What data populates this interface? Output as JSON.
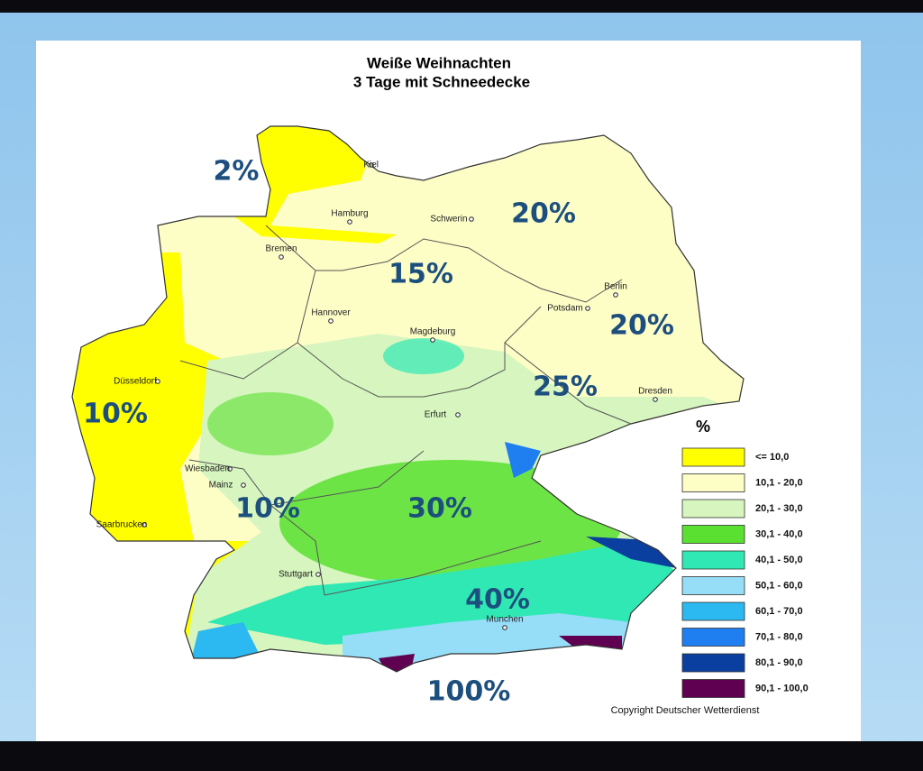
{
  "title": [
    "Weiße Weihnachten",
    "3 Tage mit Schneedecke"
  ],
  "cities": [
    "Kiel",
    "Hamburg",
    "Schwerin",
    "Bremen",
    "Berlin",
    "Potsdam",
    "Hannover",
    "Magdeburg",
    "Düsseldorf",
    "Erfurt",
    "Dresden",
    "Wiesbaden",
    "Mainz",
    "Saarbrucken",
    "Stuttgart",
    "Munchen"
  ],
  "regions": [
    "2%",
    "20%",
    "15%",
    "20%",
    "25%",
    "10%",
    "10%",
    "30%",
    "40%",
    "100%"
  ],
  "legend": {
    "unit": "%",
    "items": [
      {
        "label": "<= 10,0",
        "color": "#ffff00"
      },
      {
        "label": "10,1 - 20,0",
        "color": "#fdfdc6"
      },
      {
        "label": "20,1 - 30,0",
        "color": "#d6f5bf"
      },
      {
        "label": "30,1 - 40,0",
        "color": "#5ae030"
      },
      {
        "label": "40,1 - 50,0",
        "color": "#30e8b4"
      },
      {
        "label": "50,1 - 60,0",
        "color": "#96ddf8"
      },
      {
        "label": "60,1 - 70,0",
        "color": "#2cb8f0"
      },
      {
        "label": "70,1 - 80,0",
        "color": "#1f7ff0"
      },
      {
        "label": "80,1 - 90,0",
        "color": "#0a3fa0"
      },
      {
        "label": "90,1 - 100,0",
        "color": "#600050"
      }
    ]
  },
  "copyright": "Copyright Deutscher Wetterdienst"
}
